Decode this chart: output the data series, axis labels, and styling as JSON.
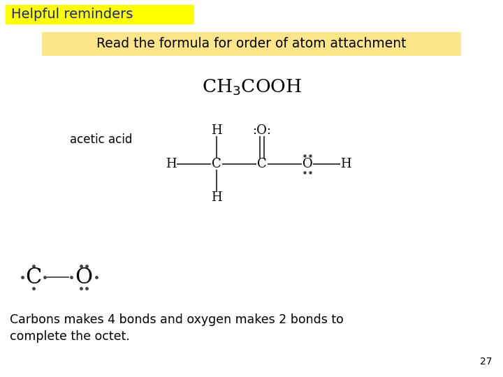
{
  "bg_color": "#ffffff",
  "title_text": "Helpful reminders",
  "title_bg": "#ffff00",
  "title_color": "#1a237e",
  "subtitle_text": "Read the formula for order of atom attachment",
  "subtitle_bg": "#fde68a",
  "label_acetic": "acetic acid",
  "bottom_text_line1": "Carbons makes 4 bonds and oxygen makes 2 bonds to",
  "bottom_text_line2": "complete the octet.",
  "page_number": "27",
  "text_color": "#000000",
  "bond_color": "#444444"
}
